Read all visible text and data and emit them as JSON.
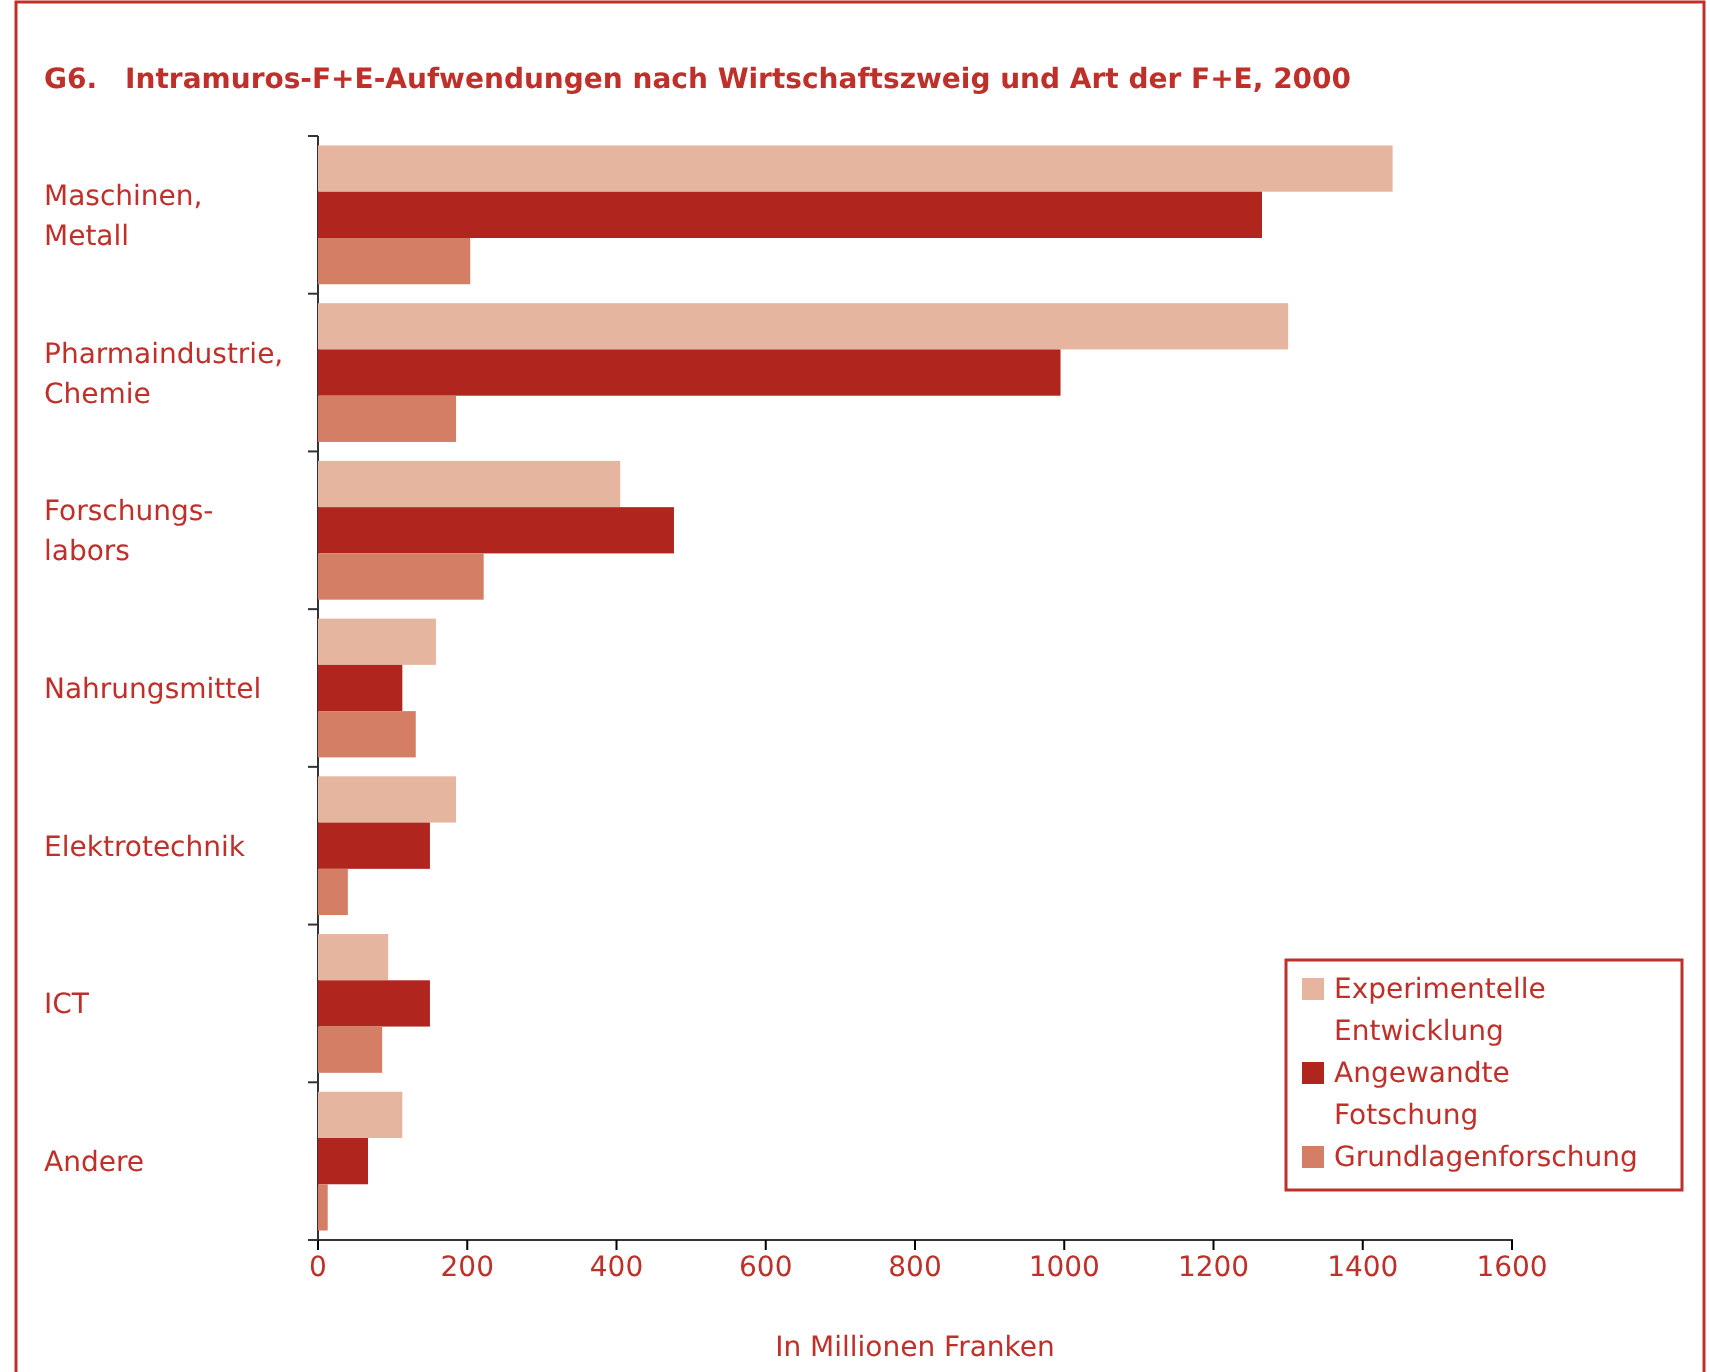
{
  "chart_data": {
    "type": "bar",
    "orientation": "horizontal",
    "title": "G6. Intramuros-F+E-Aufwendungen nach Wirtschaftszweig und Art der F+E, 2000",
    "xlabel": "In Millionen Franken",
    "categories": [
      "Maschinen,\nMetall",
      "Pharmaindustrie,\nChemie",
      "Forschungs-\nlabors",
      "Nahrungsmittel",
      "Elektrotechnik",
      "ICT",
      "Andere"
    ],
    "series": [
      {
        "name": "Experimentelle Entwicklung",
        "color": "#e6b59f",
        "values": [
          1440,
          1300,
          405,
          158,
          185,
          94,
          113
        ]
      },
      {
        "name": "Angewandte Fotschung",
        "color": "#b0261e",
        "values": [
          1265,
          995,
          477,
          113,
          150,
          150,
          67
        ]
      },
      {
        "name": "Grundlagenforschung",
        "color": "#d47e66",
        "values": [
          204,
          185,
          222,
          131,
          40,
          86,
          13
        ]
      }
    ],
    "xlim": [
      0,
      1600
    ],
    "xticks": [
      0,
      200,
      400,
      600,
      800,
      1000,
      1200,
      1400,
      1600
    ],
    "grid": false,
    "legend": "bottom right"
  }
}
